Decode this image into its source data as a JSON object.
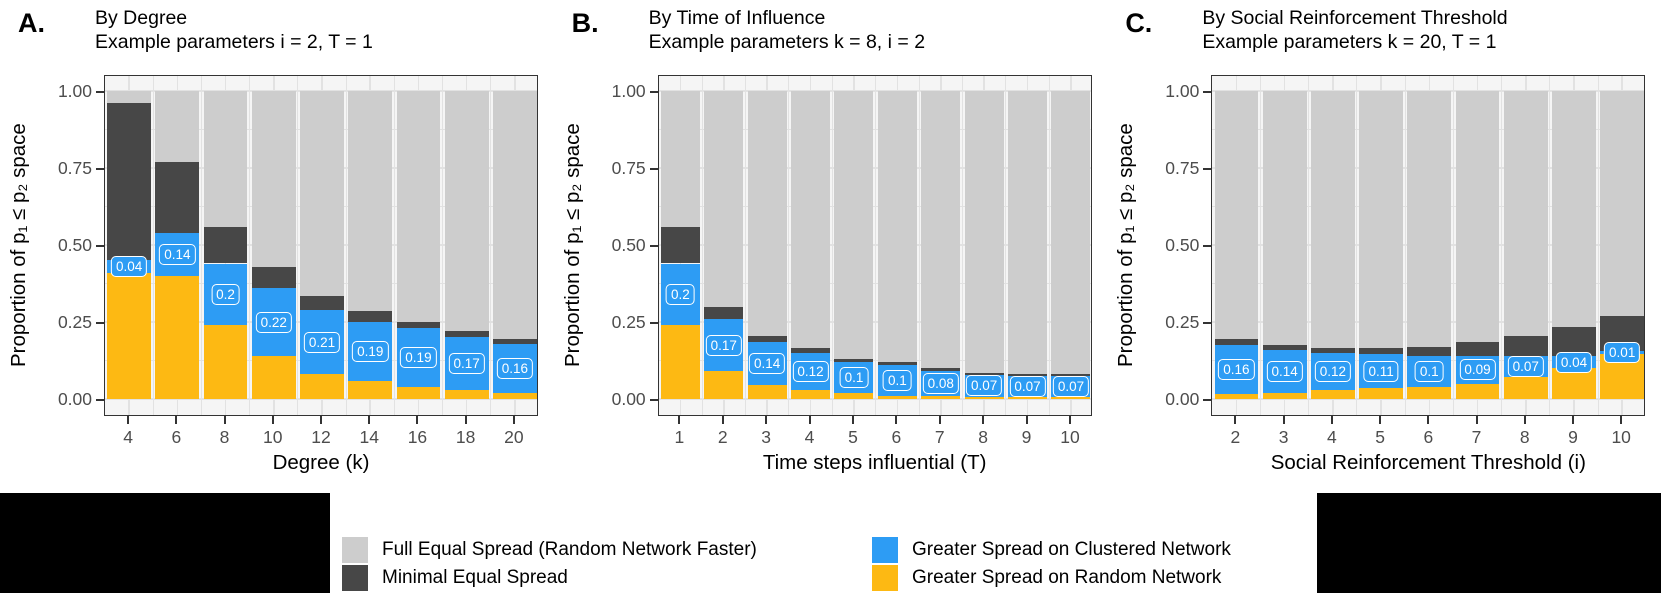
{
  "figure": {
    "y_axis_title": "Proportion of p₁ ≤ p₂ space",
    "y_ticks": [
      {
        "label": "1.00",
        "value": 1.0
      },
      {
        "label": "0.75",
        "value": 0.75
      },
      {
        "label": "0.50",
        "value": 0.5
      },
      {
        "label": "0.25",
        "value": 0.25
      },
      {
        "label": "0.00",
        "value": 0.0
      }
    ],
    "panel_letters": [
      "A.",
      "B.",
      "C."
    ]
  },
  "colors": {
    "full_equal_spread": "#CDCDCD",
    "minimal_equal_spread": "#474747",
    "greater_clustered": "#2D9CF4",
    "greater_random": "#FDB913",
    "panel_background": "#F5F5F5",
    "gridline": "#E2E2E2",
    "panel_border": "#333333",
    "axis_text": "#4D4D4D",
    "redaction_box": "#000000"
  },
  "legend": {
    "items": [
      {
        "label": "Full Equal Spread (Random Network Faster)",
        "color": "#CDCDCD"
      },
      {
        "label": "Minimal Equal Spread",
        "color": "#474747"
      },
      {
        "label": "Greater Spread on Clustered Network",
        "color": "#2D9CF4"
      },
      {
        "label": "Greater Spread on Random Network",
        "color": "#FDB913"
      }
    ]
  },
  "chart_data": [
    {
      "type": "bar",
      "stacked": true,
      "title": "By Degree",
      "subtitle": "Example parameters i = 2, T = 1",
      "xlabel": "Degree (k)",
      "ylabel": "Proportion of p₁ ≤ p₂ space",
      "ylim": [
        0,
        1
      ],
      "grid": true,
      "categories": [
        4,
        6,
        8,
        10,
        12,
        14,
        16,
        18,
        20
      ],
      "series": [
        {
          "name": "Greater Spread on Random Network",
          "color": "#FDB913",
          "values": [
            0.41,
            0.4,
            0.24,
            0.14,
            0.08,
            0.06,
            0.04,
            0.03,
            0.02
          ]
        },
        {
          "name": "Greater Spread on Clustered Network",
          "color": "#2D9CF4",
          "values": [
            0.04,
            0.14,
            0.2,
            0.22,
            0.21,
            0.19,
            0.19,
            0.17,
            0.16
          ]
        },
        {
          "name": "Minimal Equal Spread",
          "color": "#474747",
          "values": [
            0.51,
            0.23,
            0.12,
            0.07,
            0.045,
            0.035,
            0.02,
            0.02,
            0.015
          ]
        },
        {
          "name": "Full Equal Spread (Random Network Faster)",
          "color": "#CDCDCD",
          "values": [
            0.04,
            0.23,
            0.44,
            0.57,
            0.665,
            0.715,
            0.75,
            0.78,
            0.805
          ]
        }
      ],
      "bar_labels": {
        "series": "Greater Spread on Clustered Network",
        "values": [
          "0.04",
          "0.14",
          "0.2",
          "0.22",
          "0.21",
          "0.19",
          "0.19",
          "0.17",
          "0.16"
        ]
      }
    },
    {
      "type": "bar",
      "stacked": true,
      "title": "By Time of Influence",
      "subtitle": "Example parameters k = 8, i = 2",
      "xlabel": "Time steps influential (T)",
      "ylabel": "Proportion of p₁ ≤ p₂ space",
      "ylim": [
        0,
        1
      ],
      "grid": true,
      "categories": [
        1,
        2,
        3,
        4,
        5,
        6,
        7,
        8,
        9,
        10
      ],
      "series": [
        {
          "name": "Greater Spread on Random Network",
          "color": "#FDB913",
          "values": [
            0.24,
            0.09,
            0.045,
            0.03,
            0.02,
            0.01,
            0.01,
            0.008,
            0.005,
            0.005
          ]
        },
        {
          "name": "Greater Spread on Clustered Network",
          "color": "#2D9CF4",
          "values": [
            0.2,
            0.17,
            0.14,
            0.12,
            0.1,
            0.1,
            0.08,
            0.07,
            0.07,
            0.07
          ]
        },
        {
          "name": "Minimal Equal Spread",
          "color": "#474747",
          "values": [
            0.12,
            0.04,
            0.02,
            0.015,
            0.01,
            0.01,
            0.01,
            0.007,
            0.005,
            0.005
          ]
        },
        {
          "name": "Full Equal Spread (Random Network Faster)",
          "color": "#CDCDCD",
          "values": [
            0.44,
            0.7,
            0.795,
            0.835,
            0.87,
            0.88,
            0.9,
            0.915,
            0.92,
            0.92
          ]
        }
      ],
      "bar_labels": {
        "series": "Greater Spread on Clustered Network",
        "values": [
          "0.2",
          "0.17",
          "0.14",
          "0.12",
          "0.1",
          "0.1",
          "0.08",
          "0.07",
          "0.07",
          "0.07"
        ]
      }
    },
    {
      "type": "bar",
      "stacked": true,
      "title": "By Social Reinforcement Threshold",
      "subtitle": "Example parameters k = 20, T = 1",
      "xlabel": "Social Reinforcement Threshold (i)",
      "ylabel": "Proportion of p₁ ≤ p₂ space",
      "ylim": [
        0,
        1
      ],
      "grid": true,
      "categories": [
        2,
        3,
        4,
        5,
        6,
        7,
        8,
        9,
        10
      ],
      "series": [
        {
          "name": "Greater Spread on Random Network",
          "color": "#FDB913",
          "values": [
            0.015,
            0.02,
            0.03,
            0.035,
            0.04,
            0.05,
            0.07,
            0.1,
            0.145
          ]
        },
        {
          "name": "Greater Spread on Clustered Network",
          "color": "#2D9CF4",
          "values": [
            0.16,
            0.14,
            0.12,
            0.11,
            0.1,
            0.09,
            0.07,
            0.04,
            0.01
          ]
        },
        {
          "name": "Minimal Equal Spread",
          "color": "#474747",
          "values": [
            0.02,
            0.015,
            0.015,
            0.02,
            0.03,
            0.045,
            0.065,
            0.095,
            0.115
          ]
        },
        {
          "name": "Full Equal Spread (Random Network Faster)",
          "color": "#CDCDCD",
          "values": [
            0.805,
            0.825,
            0.835,
            0.835,
            0.83,
            0.815,
            0.795,
            0.765,
            0.73
          ]
        }
      ],
      "bar_labels": {
        "series": "Greater Spread on Clustered Network",
        "values": [
          "0.16",
          "0.14",
          "0.12",
          "0.11",
          "0.1",
          "0.09",
          "0.07",
          "0.04",
          "0.01"
        ]
      }
    }
  ]
}
